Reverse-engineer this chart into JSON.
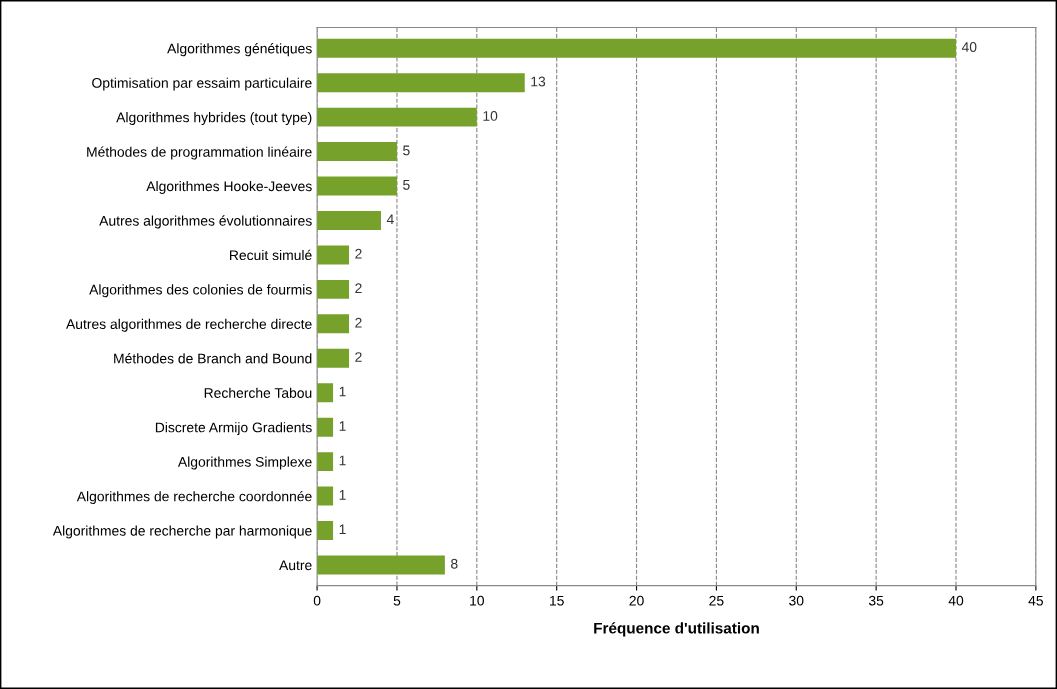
{
  "chart_data": {
    "type": "bar",
    "orientation": "horizontal",
    "xlabel": "Fréquence d'utilisation",
    "categories": [
      "Algorithmes génétiques",
      "Optimisation par essaim particulaire",
      "Algorithmes hybrides (tout type)",
      "Méthodes de programmation linéaire",
      "Algorithmes Hooke-Jeeves",
      "Autres algorithmes évolutionnaires",
      "Recuit simulé",
      "Algorithmes des colonies de fourmis",
      "Autres algorithmes de recherche directe",
      "Méthodes de Branch and Bound",
      "Recherche Tabou",
      "Discrete Armijo Gradients",
      "Algorithmes Simplexe",
      "Algorithmes de recherche coordonnée",
      "Algorithmes de recherche par harmonique",
      "Autre"
    ],
    "values": [
      40,
      13,
      10,
      5,
      5,
      4,
      2,
      2,
      2,
      2,
      1,
      1,
      1,
      1,
      1,
      8
    ],
    "color": "#76a12a",
    "xlim": [
      0,
      45
    ],
    "xticks": [
      0,
      5,
      10,
      15,
      20,
      25,
      30,
      35,
      40,
      45
    ],
    "grid": "x",
    "data_labels": true,
    "legend": false
  }
}
